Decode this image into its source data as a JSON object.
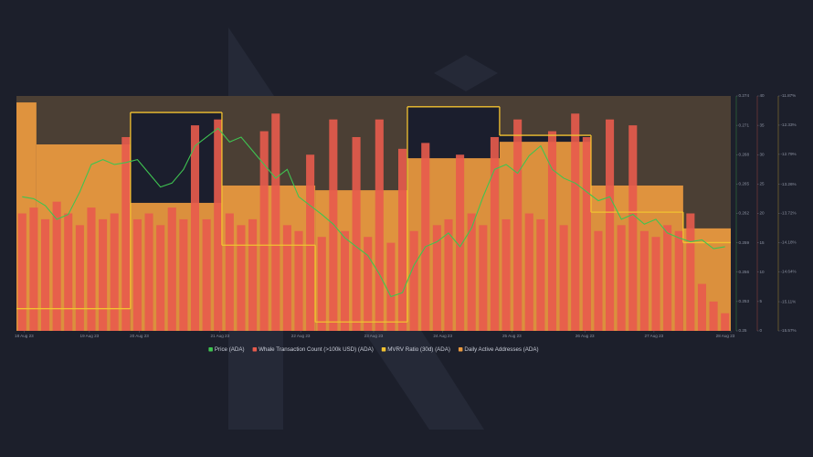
{
  "chart_data": {
    "type": "combo",
    "legend": "bottom",
    "xlim": [
      0,
      186
    ],
    "xticks": [
      {
        "value": 2,
        "label": "18 Aug 23"
      },
      {
        "value": 19,
        "label": "19 Aug 23"
      },
      {
        "value": 32,
        "label": "20 Aug 23"
      },
      {
        "value": 53,
        "label": "21 Aug 23"
      },
      {
        "value": 74,
        "label": "22 Aug 23"
      },
      {
        "value": 93,
        "label": "23 Aug 23"
      },
      {
        "value": 111,
        "label": "24 Aug 23"
      },
      {
        "value": 129,
        "label": "25 Aug 23"
      },
      {
        "value": 148,
        "label": "26 Aug 23"
      },
      {
        "value": 166,
        "label": "27 Aug 23"
      },
      {
        "value": 186,
        "label": "28 Aug 23"
      }
    ],
    "x": [
      0,
      3,
      6,
      9,
      12,
      15,
      18,
      21,
      24,
      27,
      30,
      33,
      36,
      39,
      42,
      45,
      48,
      51,
      54,
      57,
      60,
      63,
      66,
      69,
      72,
      75,
      78,
      81,
      84,
      87,
      90,
      93,
      96,
      99,
      102,
      105,
      108,
      111,
      114,
      117,
      120,
      123,
      126,
      129,
      132,
      135,
      138,
      141,
      144,
      147,
      150,
      153,
      156,
      159,
      162,
      165,
      168,
      171,
      174,
      177,
      180,
      183
    ],
    "ylim": [
      0.25,
      0.274
    ],
    "yticks": [
      0.25,
      0.253,
      0.256,
      0.259,
      0.262,
      0.265,
      0.268,
      0.271,
      0.274
    ],
    "y2lim": [
      0,
      40
    ],
    "y2ticks": [
      0,
      5,
      10,
      15,
      20,
      25,
      30,
      35,
      40
    ],
    "y3lim": [
      -15.57,
      -11.87
    ],
    "y3ticks": [
      {
        "value": -15.57,
        "label": "-15.57%"
      },
      {
        "value": -15.11,
        "label": "-15.11%"
      },
      {
        "value": -14.64,
        "label": "-14.64%"
      },
      {
        "value": -14.18,
        "label": "-14.18%"
      },
      {
        "value": -13.72,
        "label": "-13.72%"
      },
      {
        "value": -13.26,
        "label": "-13.26%"
      },
      {
        "value": -12.79,
        "label": "-12.79%"
      },
      {
        "value": -12.33,
        "label": "-12.33%"
      },
      {
        "value": -11.87,
        "label": "-11.87%"
      }
    ],
    "y4lim": [
      0,
      40000
    ],
    "series": [
      {
        "name": "Price (ADA)",
        "color": "#3fc451",
        "kind": "line",
        "axis": "y",
        "values": [
          0.2637,
          0.2635,
          0.2628,
          0.2614,
          0.2619,
          0.2642,
          0.267,
          0.2675,
          0.267,
          0.2672,
          0.2675,
          0.2661,
          0.2647,
          0.2651,
          0.2665,
          0.2689,
          0.2698,
          0.2707,
          0.2693,
          0.2698,
          0.2684,
          0.267,
          0.2656,
          0.2665,
          0.2637,
          0.2628,
          0.2619,
          0.2609,
          0.2595,
          0.2586,
          0.2577,
          0.2558,
          0.2535,
          0.2539,
          0.2567,
          0.2586,
          0.2591,
          0.26,
          0.2586,
          0.2605,
          0.2637,
          0.2665,
          0.267,
          0.2661,
          0.2679,
          0.2689,
          0.2665,
          0.2656,
          0.2651,
          0.2642,
          0.2633,
          0.2637,
          0.2614,
          0.2619,
          0.2609,
          0.2614,
          0.26,
          0.2595,
          0.2591,
          0.2593,
          0.2584,
          0.2586
        ]
      },
      {
        "name": "Whale Transaction Count (>100k USD) (ADA)",
        "color": "#e85b4c",
        "kind": "bar",
        "axis": "y2",
        "values": [
          20,
          21,
          19,
          22,
          20,
          18,
          21,
          19,
          20,
          33,
          19,
          20,
          18,
          21,
          19,
          35,
          19,
          36,
          20,
          18,
          19,
          34,
          37,
          18,
          17,
          30,
          16,
          36,
          17,
          33,
          16,
          36,
          15,
          31,
          17,
          32,
          18,
          19,
          30,
          20,
          18,
          33,
          19,
          36,
          20,
          19,
          34,
          18,
          37,
          33,
          17,
          36,
          18,
          35,
          17,
          16,
          18,
          17,
          20,
          8,
          5,
          3
        ]
      },
      {
        "name": "MVRV Ratio (30d) (ADA)",
        "color": "#f2c230",
        "kind": "step",
        "axis": "y3",
        "x": [
          0,
          5.2,
          29.7,
          53.5,
          77.8,
          101.8,
          125.8,
          149.6,
          173.6
        ],
        "values": [
          -15.22,
          -15.22,
          -12.13,
          -14.22,
          -15.43,
          -12.04,
          -12.49,
          -13.7,
          -14.18
        ]
      },
      {
        "name": "Daily Active Addresses (ADA)",
        "color": "#eb9a3f",
        "kind": "steparea",
        "axis": "y4",
        "x": [
          0,
          5.2,
          29.7,
          53.5,
          77.8,
          101.8,
          125.8,
          149.6,
          173.6
        ],
        "values": [
          38900,
          31750,
          21800,
          24750,
          23950,
          29400,
          32200,
          24750,
          17450
        ]
      }
    ]
  }
}
